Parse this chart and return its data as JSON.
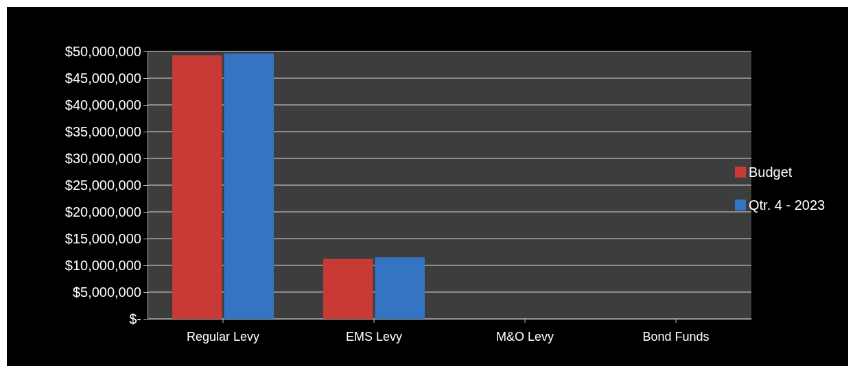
{
  "chart_data": {
    "type": "bar",
    "categories": [
      "Regular Levy",
      "EMS Levy",
      "M&O Levy",
      "Bond Funds"
    ],
    "series": [
      {
        "name": "Budget",
        "color": "#c83a35",
        "values": [
          49300000,
          11200000,
          0,
          0
        ]
      },
      {
        "name": "Qtr. 4 - 2023",
        "color": "#3574c2",
        "values": [
          49600000,
          11500000,
          0,
          0
        ]
      }
    ],
    "ylim": [
      0,
      50000000
    ],
    "yticks": [
      {
        "value": 0,
        "label": "$-"
      },
      {
        "value": 5000000,
        "label": "$5,000,000"
      },
      {
        "value": 10000000,
        "label": "$10,000,000"
      },
      {
        "value": 15000000,
        "label": "$15,000,000"
      },
      {
        "value": 20000000,
        "label": "$20,000,000"
      },
      {
        "value": 25000000,
        "label": "$25,000,000"
      },
      {
        "value": 30000000,
        "label": "$30,000,000"
      },
      {
        "value": 35000000,
        "label": "$35,000,000"
      },
      {
        "value": 40000000,
        "label": "$40,000,000"
      },
      {
        "value": 45000000,
        "label": "$45,000,000"
      },
      {
        "value": 50000000,
        "label": "$50,000,000"
      }
    ],
    "grid": "y",
    "legend": "right"
  }
}
